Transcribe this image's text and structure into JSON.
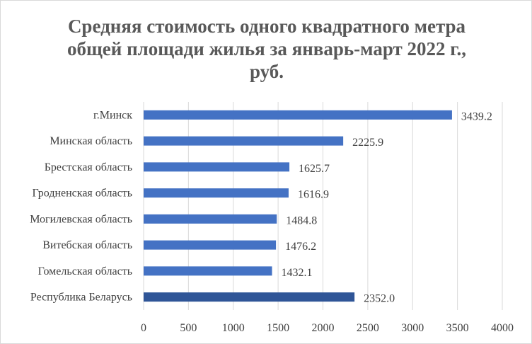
{
  "chart_data": {
    "type": "bar",
    "orientation": "horizontal",
    "title": "Средняя стоимость одного квадратного метра общей площади жилья за январь-март 2022 г., руб.",
    "categories": [
      "г.Минск",
      "Минская область",
      "Брестская область",
      "Гродненская область",
      "Могилевская область",
      "Витебская область",
      "Гомельская область",
      "Республика Беларусь"
    ],
    "values": [
      3439.2,
      2225.9,
      1625.7,
      1616.9,
      1484.8,
      1476.2,
      1432.1,
      2352.0
    ],
    "value_labels": [
      "3439.2",
      "2225.9",
      "1625.7",
      "1616.9",
      "1484.8",
      "1476.2",
      "1432.1",
      "2352.0"
    ],
    "bar_colors": [
      "#4472c4",
      "#4472c4",
      "#4472c4",
      "#4472c4",
      "#4472c4",
      "#4472c4",
      "#4472c4",
      "#2f5597"
    ],
    "xlim": [
      0,
      4000
    ],
    "xticks": [
      0,
      500,
      1000,
      1500,
      2000,
      2500,
      3000,
      3500,
      4000
    ],
    "xlabel": "",
    "ylabel": "",
    "grid": "vertical",
    "legend": "none"
  }
}
